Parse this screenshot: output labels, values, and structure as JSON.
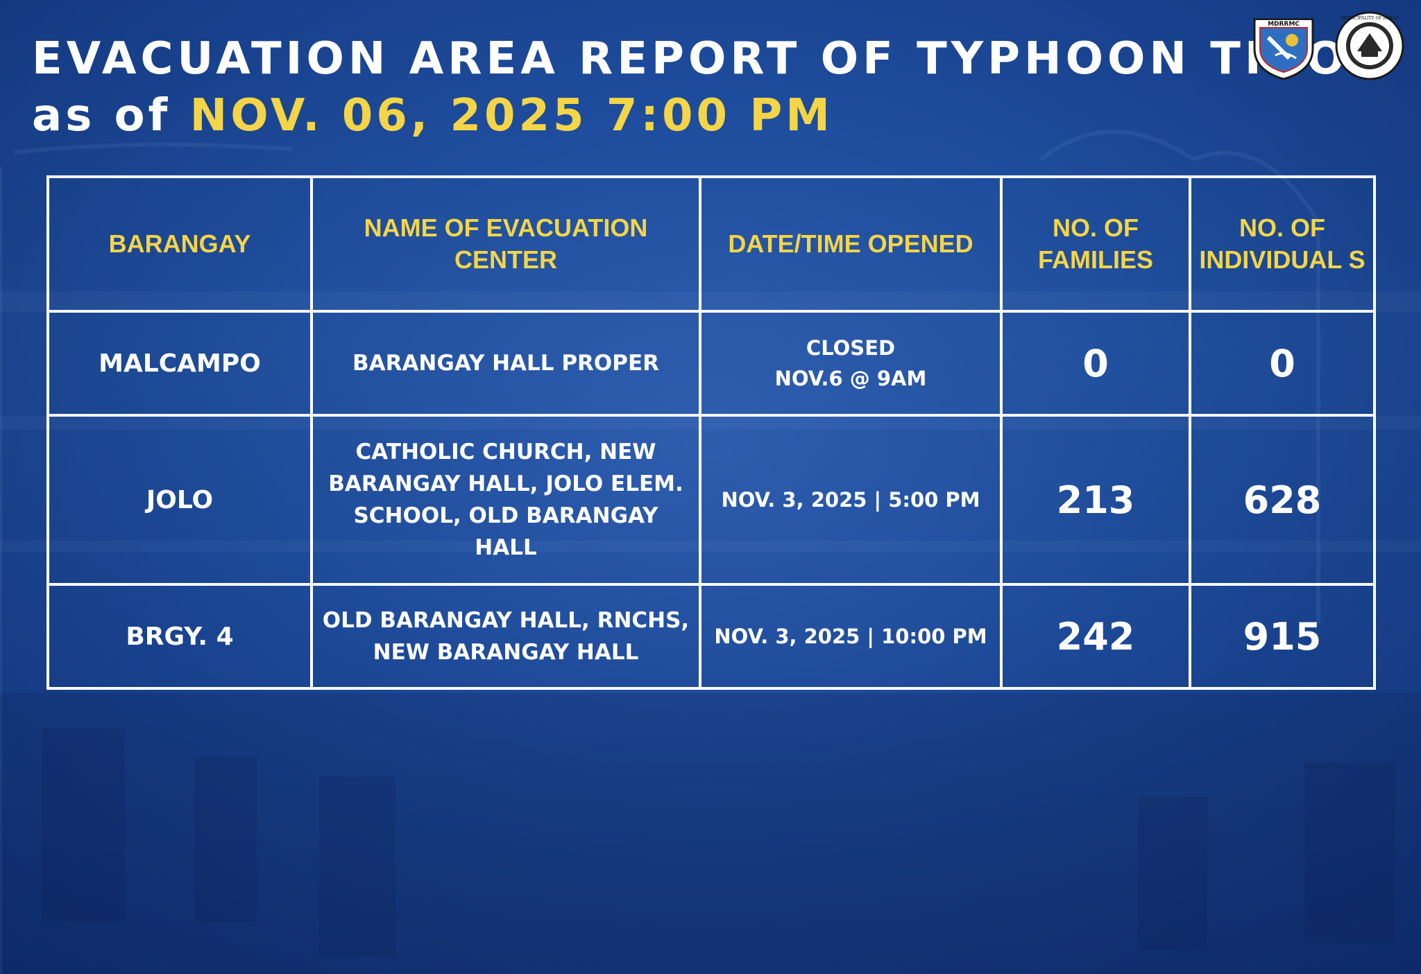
{
  "header": {
    "title": "EVACUATION AREA REPORT OF TYPHOON TINO",
    "subtitle_prefix": "as of",
    "subtitle_datetime": "NOV. 06, 2025 7:00 PM"
  },
  "logos": [
    {
      "name": "mdrrmc-seal",
      "text": "MDRRMC"
    },
    {
      "name": "municipality-seal",
      "text": "MUNICIPALITY OF ROXAS"
    }
  ],
  "colors": {
    "background": "#1f4e9e",
    "title": "#ffffff",
    "accent_yellow": "#f4d547",
    "table_border": "#ffffff"
  },
  "table": {
    "headers": [
      "BARANGAY",
      "NAME OF EVACUATION CENTER",
      "DATE/TIME OPENED",
      "NO. OF FAMILIES",
      "NO. OF INDIVIDUAL S"
    ],
    "rows": [
      {
        "barangay": "MALCAMPO",
        "center": "BARANGAY HALL PROPER",
        "date": "CLOSED\nNOV.6 @ 9AM",
        "families": "0",
        "individuals": "0"
      },
      {
        "barangay": "JOLO",
        "center": "CATHOLIC CHURCH, NEW BARANGAY HALL, JOLO ELEM. SCHOOL, OLD BARANGAY HALL",
        "date": "NOV. 3, 2025 | 5:00 PM",
        "families": "213",
        "individuals": "628"
      },
      {
        "barangay": "BRGY. 4",
        "center": "OLD BARANGAY HALL, RNCHS, NEW BARANGAY HALL",
        "date": "NOV. 3, 2025 | 10:00 PM",
        "families": "242",
        "individuals": "915"
      }
    ]
  }
}
